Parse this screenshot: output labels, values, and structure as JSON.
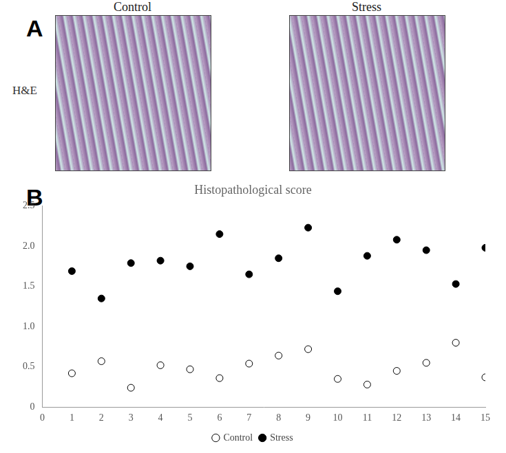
{
  "figure": {
    "panel_a": {
      "label": "A",
      "row_label": "H&E",
      "image_titles": [
        "Control",
        "Stress"
      ]
    },
    "panel_b_label": "B"
  },
  "chart_data": {
    "type": "scatter",
    "title": "Histopathological score",
    "series": [
      {
        "name": "Control",
        "color": "#000000",
        "marker": "open_circle",
        "x": [
          1,
          2,
          3,
          4,
          5,
          6,
          7,
          8,
          9,
          10,
          11,
          12,
          13,
          14,
          15
        ],
        "values": [
          0.42,
          0.57,
          0.24,
          0.52,
          0.47,
          0.36,
          0.54,
          0.64,
          0.72,
          0.35,
          0.28,
          0.45,
          0.55,
          0.8,
          0.37
        ]
      },
      {
        "name": "Stress",
        "color": "#000000",
        "marker": "circle",
        "x": [
          1,
          2,
          3,
          4,
          5,
          6,
          7,
          8,
          9,
          10,
          11,
          12,
          13,
          14,
          15
        ],
        "values": [
          1.69,
          1.35,
          1.79,
          1.82,
          1.75,
          2.15,
          1.65,
          1.85,
          2.23,
          1.44,
          1.88,
          2.08,
          1.95,
          1.53,
          1.98
        ]
      }
    ],
    "xlim": [
      0,
      15
    ],
    "xticks": [
      0,
      1,
      2,
      3,
      4,
      5,
      6,
      7,
      8,
      9,
      10,
      11,
      12,
      13,
      14,
      15
    ],
    "ylim": [
      0,
      2.5
    ],
    "yticks": [
      0,
      0.5,
      1,
      1.5,
      2,
      2.5
    ],
    "grid": false,
    "legend": "bottom"
  }
}
